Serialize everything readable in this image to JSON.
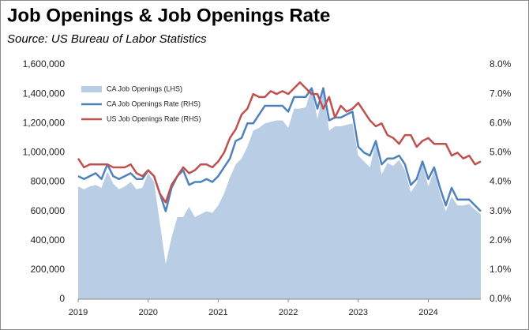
{
  "chart_data": {
    "type": "line",
    "title": "Job Openings & Job Openings Rate",
    "subtitle": "Source:  US Bureau of Labor Statistics",
    "categories": [
      "2019",
      null,
      null,
      null,
      null,
      null,
      null,
      null,
      null,
      null,
      null,
      null,
      "2020",
      null,
      null,
      null,
      null,
      null,
      null,
      null,
      null,
      null,
      null,
      null,
      "2021",
      null,
      null,
      null,
      null,
      null,
      null,
      null,
      null,
      null,
      null,
      null,
      "2022",
      null,
      null,
      null,
      null,
      null,
      null,
      null,
      null,
      null,
      null,
      null,
      "2023",
      null,
      null,
      null,
      null,
      null,
      null,
      null,
      null,
      null,
      null,
      null,
      "2024",
      null,
      null,
      null,
      null,
      null,
      null,
      null,
      null,
      null
    ],
    "series": [
      {
        "name": "CA Job Openings (LHS)",
        "type": "area",
        "color": "#b9cde5",
        "axis": "y",
        "values": [
          770000,
          750000,
          770000,
          780000,
          760000,
          870000,
          790000,
          750000,
          770000,
          800000,
          750000,
          760000,
          860000,
          800000,
          520000,
          240000,
          420000,
          560000,
          560000,
          630000,
          560000,
          580000,
          600000,
          590000,
          640000,
          720000,
          830000,
          920000,
          960000,
          1040000,
          1150000,
          1170000,
          1200000,
          1210000,
          1220000,
          1220000,
          1170000,
          1300000,
          1300000,
          1310000,
          1440000,
          1230000,
          1420000,
          1150000,
          1180000,
          1180000,
          1190000,
          1200000,
          980000,
          940000,
          900000,
          1070000,
          850000,
          930000,
          910000,
          950000,
          880000,
          730000,
          790000,
          920000,
          770000,
          880000,
          720000,
          600000,
          700000,
          640000,
          640000,
          650000,
          610000,
          580000
        ]
      },
      {
        "name": "CA Job Openings Rate (RHS)",
        "type": "line",
        "color": "#4f81bd",
        "axis": "y2",
        "values": [
          4.2,
          4.1,
          4.2,
          4.3,
          4.1,
          4.6,
          4.2,
          4.1,
          4.2,
          4.3,
          4.1,
          4.1,
          4.4,
          4.2,
          3.6,
          3.0,
          3.8,
          4.2,
          4.4,
          3.9,
          4.0,
          4.0,
          4.1,
          4.0,
          4.2,
          4.5,
          4.8,
          5.4,
          5.5,
          6.0,
          6.0,
          6.3,
          6.6,
          6.6,
          6.6,
          6.6,
          6.4,
          6.9,
          6.9,
          6.9,
          7.2,
          6.5,
          7.2,
          6.1,
          6.2,
          6.2,
          6.3,
          6.4,
          5.2,
          5.0,
          4.9,
          5.4,
          4.6,
          4.8,
          4.8,
          4.9,
          4.6,
          3.9,
          4.1,
          4.7,
          4.1,
          4.5,
          3.8,
          3.2,
          3.8,
          3.4,
          3.4,
          3.4,
          3.2,
          3.0
        ]
      },
      {
        "name": "US Job Openings Rate (RHS)",
        "type": "line",
        "color": "#c0504d",
        "axis": "y2",
        "values": [
          4.8,
          4.5,
          4.6,
          4.6,
          4.6,
          4.6,
          4.5,
          4.5,
          4.5,
          4.6,
          4.3,
          4.2,
          4.4,
          4.2,
          3.6,
          3.3,
          3.9,
          4.2,
          4.5,
          4.3,
          4.4,
          4.6,
          4.6,
          4.5,
          4.7,
          5.0,
          5.5,
          5.8,
          6.3,
          6.5,
          7.0,
          6.9,
          6.9,
          7.1,
          7.0,
          7.1,
          7.0,
          7.2,
          7.4,
          7.2,
          7.0,
          7.0,
          6.5,
          6.9,
          6.2,
          6.6,
          6.4,
          6.5,
          6.7,
          6.4,
          6.1,
          5.9,
          6.0,
          5.6,
          5.5,
          5.3,
          5.6,
          5.6,
          5.2,
          5.4,
          5.5,
          5.3,
          5.3,
          5.3,
          4.9,
          5.0,
          4.8,
          4.9,
          4.6,
          4.7
        ]
      }
    ],
    "ylim": [
      0,
      1600000
    ],
    "yticks": [
      {
        "value": 0,
        "label": "0"
      },
      {
        "value": 200000,
        "label": "200,000"
      },
      {
        "value": 400000,
        "label": "400,000"
      },
      {
        "value": 600000,
        "label": "600,000"
      },
      {
        "value": 800000,
        "label": "800,000"
      },
      {
        "value": 1000000,
        "label": "1,000,000"
      },
      {
        "value": 1200000,
        "label": "1,200,000"
      },
      {
        "value": 1400000,
        "label": "1,400,000"
      },
      {
        "value": 1600000,
        "label": "1,600,000"
      }
    ],
    "y2lim": [
      0,
      8
    ],
    "y2ticks": [
      {
        "value": 0,
        "label": "0.0%"
      },
      {
        "value": 1,
        "label": "1.0%"
      },
      {
        "value": 2,
        "label": "2.0%"
      },
      {
        "value": 3,
        "label": "3.0%"
      },
      {
        "value": 4,
        "label": "4.0%"
      },
      {
        "value": 5,
        "label": "5.0%"
      },
      {
        "value": 6,
        "label": "6.0%"
      },
      {
        "value": 7,
        "label": "7.0%"
      },
      {
        "value": 8,
        "label": "8.0%"
      }
    ],
    "grid": false,
    "legend": "upper-left"
  }
}
